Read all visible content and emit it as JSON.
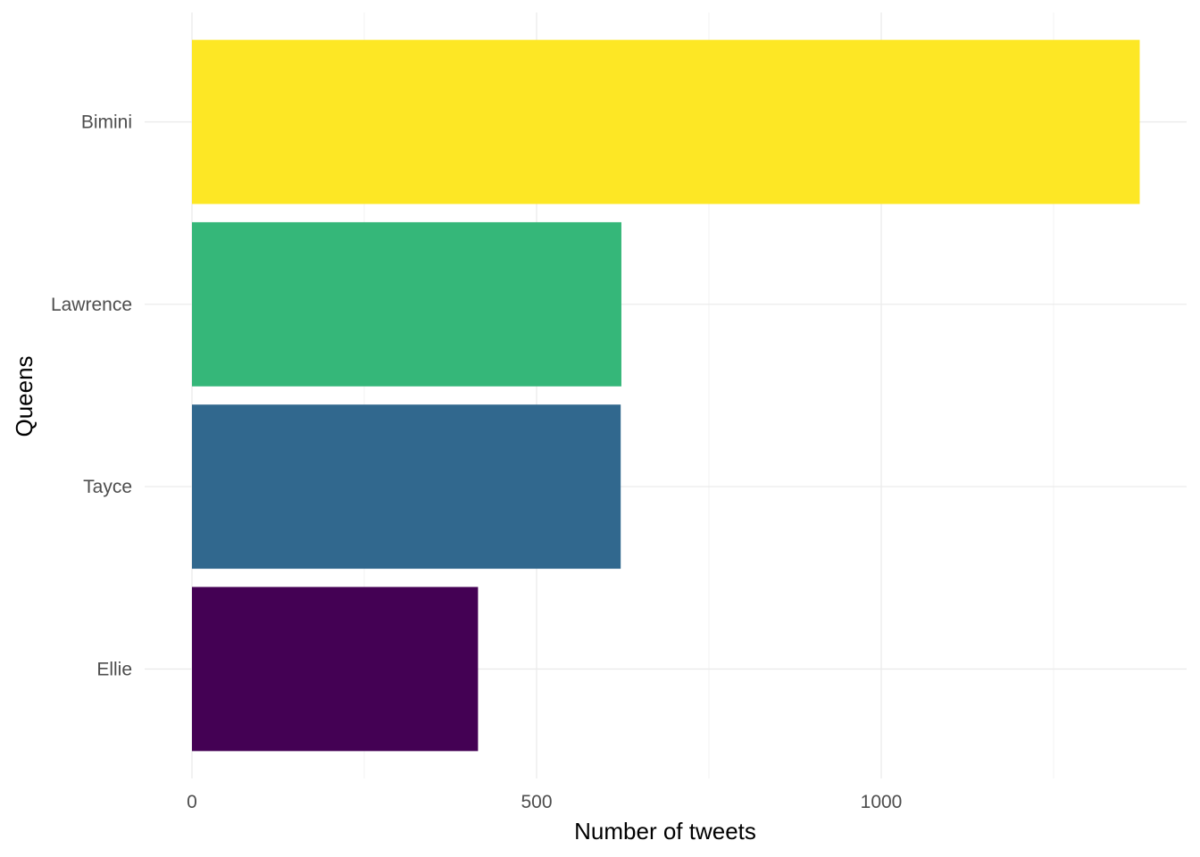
{
  "chart_data": {
    "type": "bar",
    "orientation": "horizontal",
    "categories": [
      "Bimini",
      "Lawrence",
      "Tayce",
      "Ellie"
    ],
    "values": [
      1375,
      623,
      622,
      415
    ],
    "colors": [
      "#FDE725",
      "#35B779",
      "#31688E",
      "#440154"
    ],
    "xlabel": "Number of tweets",
    "ylabel": "Queens",
    "xlim": [
      0,
      1445
    ],
    "xticks": [
      0,
      500,
      1000
    ],
    "xtick_labels": [
      "0",
      "500",
      "1000"
    ],
    "grid": true
  }
}
